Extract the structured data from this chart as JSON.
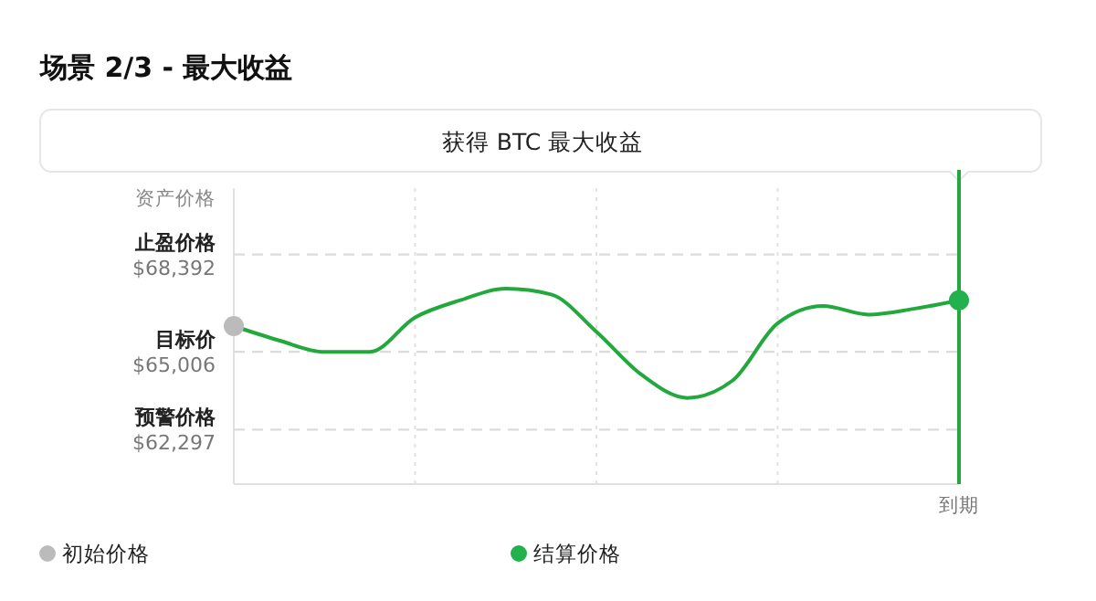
{
  "chart_data": {
    "type": "line",
    "title": "场景 2/3 - 最大收益",
    "subtitle": "获得 BTC 最大收益",
    "ylabel": "资产价格",
    "categories": [
      null,
      null,
      null,
      null,
      null,
      null,
      null,
      null,
      null,
      null,
      null,
      null,
      null,
      null,
      null,
      null,
      "到期"
    ],
    "ylim": [
      60400,
      70700
    ],
    "yticks": [
      {
        "value": 62297,
        "label": "$62,297"
      },
      {
        "value": 65006,
        "label": "$65,006"
      },
      {
        "value": 68392,
        "label": "$68,392"
      }
    ],
    "grid": "x",
    "legend": "bottom",
    "ref_lines": [
      {
        "axis": "x",
        "value": "到期",
        "color": "#22a83c",
        "line_style": "solid"
      },
      {
        "axis": "y",
        "value": 62297,
        "label": "预警价格",
        "color": "#dcdcdc",
        "line_style": "dashed"
      },
      {
        "axis": "y",
        "value": 65006,
        "label": "目标价",
        "color": "#dcdcdc",
        "line_style": "dashed"
      },
      {
        "axis": "y",
        "value": 68392,
        "label": "止盈价格",
        "color": "#dcdcdc",
        "line_style": "dashed"
      }
    ],
    "series": [
      {
        "color": "#22a83c",
        "marker": "none",
        "values": [
          65900,
          65400,
          65000,
          65000,
          66200,
          66800,
          67200,
          67000,
          65700,
          64200,
          63400,
          64000,
          66000,
          66600,
          66300,
          66500,
          66800
        ]
      },
      {
        "type": "scatter",
        "name": "初始价格",
        "color": "#bbbbbb",
        "marker": "circle",
        "values": [
          65900,
          null,
          null,
          null,
          null,
          null,
          null,
          null,
          null,
          null,
          null,
          null,
          null,
          null,
          null,
          null,
          null
        ]
      },
      {
        "type": "scatter",
        "name": "结算价格",
        "color": "#22b14c",
        "marker": "circle",
        "values": [
          null,
          null,
          null,
          null,
          null,
          null,
          null,
          null,
          null,
          null,
          null,
          null,
          null,
          null,
          null,
          null,
          66800
        ]
      }
    ]
  }
}
